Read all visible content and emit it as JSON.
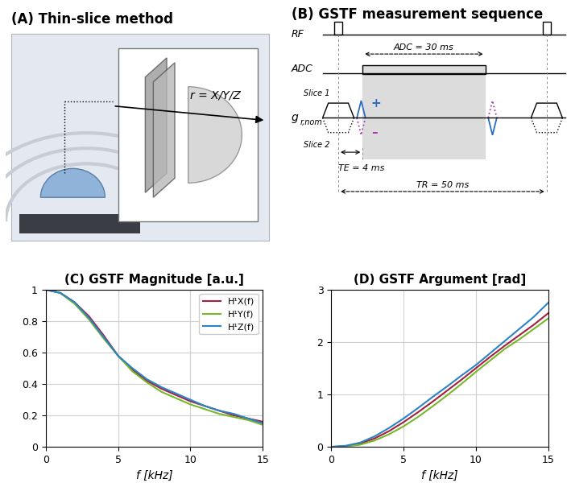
{
  "panels": {
    "A": {
      "title": "(A) Thin-slice method",
      "annotation": "r = X/Y/Z"
    },
    "B": {
      "title": "(B) GSTF measurement sequence",
      "rows": [
        "RF",
        "ADC"
      ],
      "gradient_label": {
        "symbol": "g",
        "subscript": "r,nom"
      },
      "adc_duration": "ADC = 30 ms",
      "slice_labels": [
        "Slice 1",
        "Slice 2"
      ],
      "polarity": [
        "+",
        "–"
      ],
      "echo_time": "TE = 4 ms",
      "repetition_time": "TR = 50 ms"
    }
  },
  "chart_data": [
    {
      "type": "line",
      "title": "(C) GSTF Magnitude [a.u.]",
      "xlabel": "f [kHz]",
      "x": [
        0,
        1,
        2,
        3,
        4,
        5,
        6,
        7,
        8,
        9,
        10,
        11,
        12,
        13,
        14,
        15
      ],
      "series": [
        {
          "name": "H¹X(f)",
          "color": "#a3203f",
          "values": [
            1.0,
            0.98,
            0.92,
            0.83,
            0.71,
            0.58,
            0.49,
            0.42,
            0.37,
            0.33,
            0.29,
            0.26,
            0.23,
            0.2,
            0.18,
            0.16
          ]
        },
        {
          "name": "H¹Y(f)",
          "color": "#77b82a",
          "values": [
            1.0,
            0.98,
            0.91,
            0.81,
            0.69,
            0.58,
            0.48,
            0.41,
            0.35,
            0.31,
            0.27,
            0.24,
            0.21,
            0.19,
            0.17,
            0.14
          ]
        },
        {
          "name": "H¹Z(f)",
          "color": "#2b83c6",
          "values": [
            1.0,
            0.98,
            0.92,
            0.82,
            0.7,
            0.58,
            0.5,
            0.43,
            0.38,
            0.34,
            0.3,
            0.26,
            0.23,
            0.21,
            0.18,
            0.15
          ]
        }
      ],
      "xlim": [
        0,
        15
      ],
      "xticks": [
        0,
        5,
        10,
        15
      ],
      "ylim": [
        0,
        1
      ],
      "yticks": [
        0,
        0.2,
        0.4,
        0.6,
        0.8,
        1
      ],
      "grid": true,
      "legend": "upper right"
    },
    {
      "type": "line",
      "title": "(D) GSTF Argument [rad]",
      "xlabel": "f [kHz]",
      "x": [
        0,
        1,
        2,
        3,
        4,
        5,
        6,
        7,
        8,
        9,
        10,
        11,
        12,
        13,
        14,
        15
      ],
      "series": [
        {
          "name": "H¹X(f)",
          "color": "#a3203f",
          "values": [
            0,
            0.01,
            0.06,
            0.16,
            0.3,
            0.47,
            0.66,
            0.86,
            1.07,
            1.28,
            1.5,
            1.72,
            1.93,
            2.13,
            2.33,
            2.55
          ]
        },
        {
          "name": "H¹Y(f)",
          "color": "#77b82a",
          "values": [
            0,
            0.01,
            0.04,
            0.12,
            0.24,
            0.39,
            0.57,
            0.77,
            0.98,
            1.2,
            1.43,
            1.65,
            1.87,
            2.05,
            2.25,
            2.45
          ]
        },
        {
          "name": "H¹Z(f)",
          "color": "#2b83c6",
          "values": [
            0,
            0.02,
            0.08,
            0.2,
            0.36,
            0.54,
            0.74,
            0.95,
            1.15,
            1.36,
            1.56,
            1.79,
            2.02,
            2.25,
            2.48,
            2.75
          ]
        }
      ],
      "xlim": [
        0,
        15
      ],
      "xticks": [
        0,
        5,
        10,
        15
      ],
      "ylim": [
        0,
        3
      ],
      "yticks": [
        0,
        1,
        2,
        3
      ],
      "grid": true
    }
  ]
}
